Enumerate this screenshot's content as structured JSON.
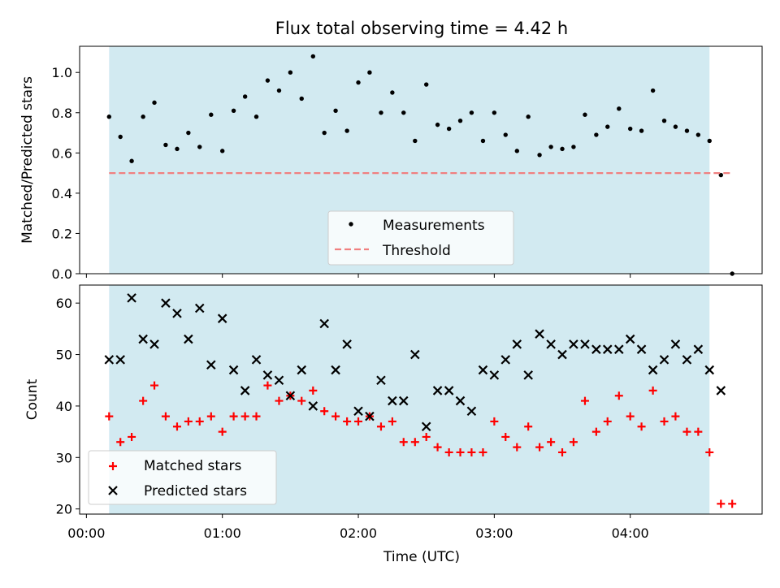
{
  "chart_data": [
    {
      "type": "scatter",
      "title": "Flux total observing time = 4.42 h",
      "ylabel": "Matched/Predicted stars",
      "ylim": [
        0,
        1.13
      ],
      "yticks": [
        "0.0",
        "0.2",
        "0.4",
        "0.6",
        "0.8",
        "1.0"
      ],
      "xlim_hours": [
        -0.05,
        4.97
      ],
      "shaded_range_hours": [
        0.167,
        4.583
      ],
      "shade_color": "#add8e6",
      "threshold": 0.5,
      "legend": {
        "position": "lower-center",
        "entries": [
          "Measurements",
          "Threshold"
        ]
      },
      "series": [
        {
          "name": "Measurements",
          "color": "#000000",
          "x": [
            0.167,
            0.25,
            0.333,
            0.417,
            0.5,
            0.583,
            0.667,
            0.75,
            0.833,
            0.917,
            1.0,
            1.083,
            1.167,
            1.25,
            1.333,
            1.417,
            1.5,
            1.583,
            1.667,
            1.75,
            1.833,
            1.917,
            2.0,
            2.083,
            2.167,
            2.25,
            2.333,
            2.417,
            2.5,
            2.583,
            2.667,
            2.75,
            2.833,
            2.917,
            3.0,
            3.083,
            3.167,
            3.25,
            3.333,
            3.417,
            3.5,
            3.583,
            3.667,
            3.75,
            3.833,
            3.917,
            4.0,
            4.083,
            4.167,
            4.25,
            4.333,
            4.417,
            4.5,
            4.583,
            4.667,
            4.75
          ],
          "y": [
            0.78,
            0.68,
            0.56,
            0.78,
            0.85,
            0.64,
            0.62,
            0.7,
            0.63,
            0.79,
            0.61,
            0.81,
            0.88,
            0.78,
            0.96,
            0.91,
            1.0,
            0.87,
            1.08,
            0.7,
            0.81,
            0.71,
            0.95,
            1.0,
            0.8,
            0.9,
            0.8,
            0.66,
            0.94,
            0.74,
            0.72,
            0.76,
            0.8,
            0.66,
            0.8,
            0.69,
            0.61,
            0.78,
            0.59,
            0.63,
            0.62,
            0.63,
            0.79,
            0.69,
            0.73,
            0.82,
            0.72,
            0.71,
            0.91,
            0.76,
            0.73,
            0.71,
            0.69,
            0.66,
            0.49,
            0.0
          ]
        },
        {
          "name": "Threshold",
          "color": "#f08080",
          "style": "dashed",
          "x": [
            0.167,
            4.75
          ],
          "y": [
            0.5,
            0.5
          ]
        }
      ]
    },
    {
      "type": "scatter",
      "ylabel": "Count",
      "xlabel": "Time (UTC)",
      "ylim": [
        19,
        63.5
      ],
      "yticks": [
        "20",
        "30",
        "40",
        "50",
        "60"
      ],
      "xlim_hours": [
        -0.05,
        4.97
      ],
      "xticks": [
        "00:00",
        "01:00",
        "02:00",
        "03:00",
        "04:00"
      ],
      "shaded_range_hours": [
        0.167,
        4.583
      ],
      "shade_color": "#add8e6",
      "legend": {
        "position": "lower-left",
        "entries": [
          "Matched stars",
          "Predicted stars"
        ]
      },
      "series": [
        {
          "name": "Matched stars",
          "marker": "plus",
          "color": "#ff0000",
          "x": [
            0.167,
            0.25,
            0.333,
            0.417,
            0.5,
            0.583,
            0.667,
            0.75,
            0.833,
            0.917,
            1.0,
            1.083,
            1.167,
            1.25,
            1.333,
            1.417,
            1.5,
            1.583,
            1.667,
            1.75,
            1.833,
            1.917,
            2.0,
            2.083,
            2.167,
            2.25,
            2.333,
            2.417,
            2.5,
            2.583,
            2.667,
            2.75,
            2.833,
            2.917,
            3.0,
            3.083,
            3.167,
            3.25,
            3.333,
            3.417,
            3.5,
            3.583,
            3.667,
            3.75,
            3.833,
            3.917,
            4.0,
            4.083,
            4.167,
            4.25,
            4.333,
            4.417,
            4.5,
            4.583,
            4.667,
            4.75
          ],
          "y": [
            38,
            33,
            34,
            41,
            44,
            38,
            36,
            37,
            37,
            38,
            35,
            38,
            38,
            38,
            44,
            41,
            42,
            41,
            43,
            39,
            38,
            37,
            37,
            38,
            36,
            37,
            33,
            33,
            34,
            32,
            31,
            31,
            31,
            31,
            37,
            34,
            32,
            36,
            32,
            33,
            31,
            33,
            41,
            35,
            37,
            42,
            38,
            36,
            43,
            37,
            38,
            35,
            35,
            31,
            21,
            21
          ]
        },
        {
          "name": "Predicted stars",
          "marker": "x",
          "color": "#000000",
          "x": [
            0.167,
            0.25,
            0.333,
            0.417,
            0.5,
            0.583,
            0.667,
            0.75,
            0.833,
            0.917,
            1.0,
            1.083,
            1.167,
            1.25,
            1.333,
            1.417,
            1.5,
            1.583,
            1.667,
            1.75,
            1.833,
            1.917,
            2.0,
            2.083,
            2.167,
            2.25,
            2.333,
            2.417,
            2.5,
            2.583,
            2.667,
            2.75,
            2.833,
            2.917,
            3.0,
            3.083,
            3.167,
            3.25,
            3.333,
            3.417,
            3.5,
            3.583,
            3.667,
            3.75,
            3.833,
            3.917,
            4.0,
            4.083,
            4.167,
            4.25,
            4.333,
            4.417,
            4.5,
            4.583,
            4.667
          ],
          "y": [
            49,
            49,
            61,
            53,
            52,
            60,
            58,
            53,
            59,
            48,
            57,
            47,
            43,
            49,
            46,
            45,
            42,
            47,
            40,
            56,
            47,
            52,
            39,
            38,
            45,
            41,
            41,
            50,
            36,
            43,
            43,
            41,
            39,
            47,
            46,
            49,
            52,
            46,
            54,
            52,
            50,
            52,
            52,
            51,
            51,
            51,
            53,
            51,
            47,
            49,
            52,
            49,
            51,
            47,
            43
          ]
        }
      ]
    }
  ]
}
